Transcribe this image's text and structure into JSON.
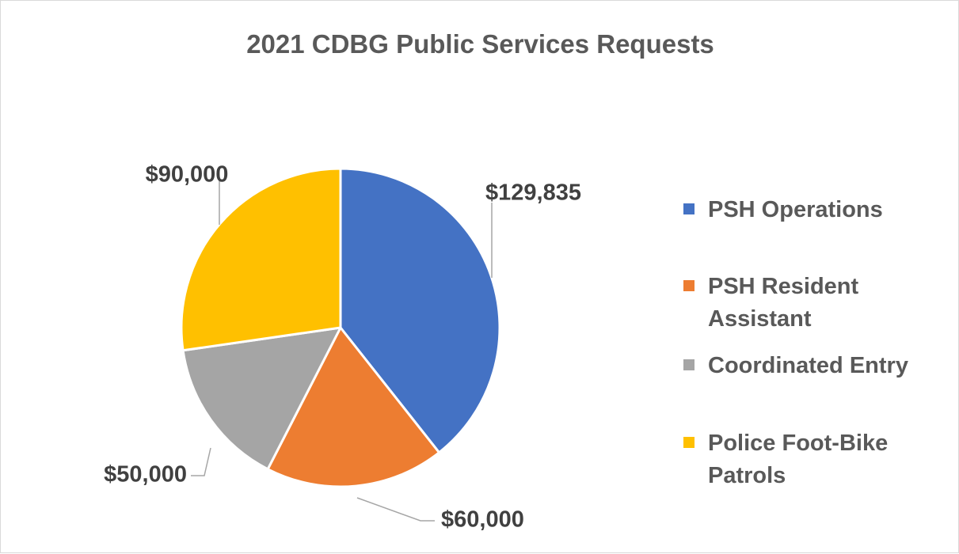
{
  "chart_data": {
    "type": "pie",
    "title": "2021 CDBG Public Services Requests",
    "categories": [
      "PSH Operations",
      "PSH Resident Assistant",
      "Coordinated Entry",
      "Police Foot-Bike Patrols"
    ],
    "values": [
      129835,
      60000,
      50000,
      90000
    ],
    "data_labels": [
      "$129,835",
      "$60,000",
      "$50,000",
      "$90,000"
    ],
    "colors": [
      "#4472c4",
      "#ed7d31",
      "#a5a5a5",
      "#ffc000"
    ],
    "legend_position": "right",
    "start_angle_deg": 0,
    "direction": "clockwise"
  }
}
